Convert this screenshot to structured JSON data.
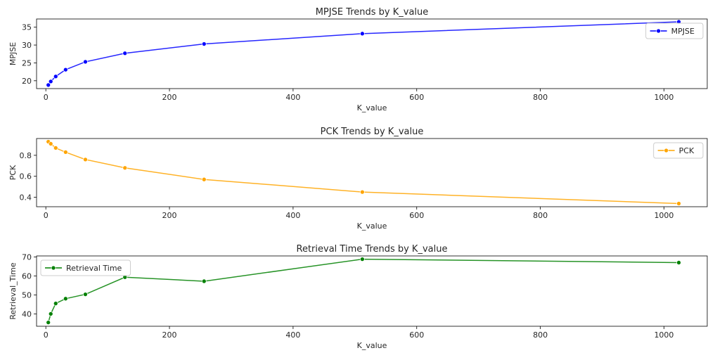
{
  "chart_data": [
    {
      "type": "line",
      "title": "MPJSE Trends by K_value",
      "xlabel": "K_value",
      "ylabel": "MPJSE",
      "xlim": [
        -15,
        1070
      ],
      "ylim": [
        17.8,
        37.3
      ],
      "xticks": [
        0,
        200,
        400,
        600,
        800,
        1000
      ],
      "yticks": [
        20,
        25,
        30,
        35
      ],
      "ytick_labels": [
        "20",
        "25",
        "30",
        "35"
      ],
      "legend_loc": "upper-right",
      "series": [
        {
          "name": "MPJSE",
          "color": "#0000ff",
          "x": [
            4,
            8,
            16,
            32,
            64,
            128,
            256,
            512,
            1024
          ],
          "y": [
            18.8,
            19.8,
            21.2,
            23.1,
            25.3,
            27.7,
            30.3,
            33.2,
            36.5
          ]
        }
      ]
    },
    {
      "type": "line",
      "title": "PCK Trends by K_value",
      "xlabel": "K_value",
      "ylabel": "PCK",
      "xlim": [
        -15,
        1070
      ],
      "ylim": [
        0.31,
        0.96
      ],
      "xticks": [
        0,
        200,
        400,
        600,
        800,
        1000
      ],
      "yticks": [
        0.4,
        0.6,
        0.8
      ],
      "ytick_labels": [
        "0.4",
        "0.6",
        "0.8"
      ],
      "legend_loc": "upper-right",
      "series": [
        {
          "name": "PCK",
          "color": "#ffa500",
          "x": [
            4,
            8,
            16,
            32,
            64,
            128,
            256,
            512,
            1024
          ],
          "y": [
            0.93,
            0.91,
            0.87,
            0.83,
            0.76,
            0.68,
            0.57,
            0.45,
            0.34
          ]
        }
      ]
    },
    {
      "type": "line",
      "title": "Retrieval Time Trends by K_value",
      "xlabel": "K_value",
      "ylabel": "Retrieval_Time",
      "xlim": [
        -15,
        1070
      ],
      "ylim": [
        33.5,
        70.5
      ],
      "xticks": [
        0,
        200,
        400,
        600,
        800,
        1000
      ],
      "yticks": [
        40,
        50,
        60,
        70
      ],
      "ytick_labels": [
        "40",
        "50",
        "60",
        "70"
      ],
      "legend_loc": "upper-left",
      "series": [
        {
          "name": "Retrieval Time",
          "color": "#008000",
          "x": [
            4,
            8,
            16,
            32,
            64,
            128,
            256,
            512,
            1024
          ],
          "y": [
            35.5,
            40,
            45.5,
            48,
            50.3,
            59.3,
            57.2,
            68.8,
            67
          ]
        }
      ]
    }
  ]
}
